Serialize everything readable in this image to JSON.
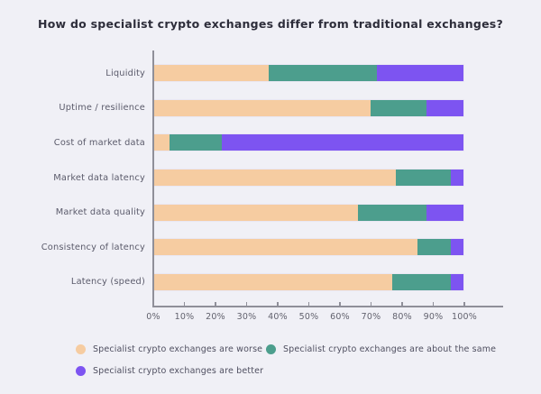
{
  "title": "How do specialist crypto exchanges differ from traditional exchanges?",
  "chart_data": {
    "type": "bar",
    "orientation": "horizontal",
    "stacked": true,
    "unit": "%",
    "title": "How do specialist crypto exchanges differ from traditional exchanges?",
    "categories": [
      "Liquidity",
      "Uptime / resilience",
      "Cost of market data",
      "Market data latency",
      "Market data quality",
      "Consistency of latency",
      "Latency (speed)"
    ],
    "series": [
      {
        "name": "Specialist crypto exchanges are worse",
        "color": "#F6CCA1",
        "values": [
          37,
          70,
          5,
          78,
          66,
          85,
          77
        ]
      },
      {
        "name": "Specialist crypto exchanges are about the same",
        "color": "#4C9E8D",
        "values": [
          35,
          18,
          17,
          18,
          22,
          11,
          19
        ]
      },
      {
        "name": "Specialist crypto exchanges are better",
        "color": "#7D54F1",
        "values": [
          28,
          12,
          78,
          4,
          12,
          4,
          4
        ]
      }
    ],
    "x_ticks": [
      "0%",
      "10%",
      "20%",
      "30%",
      "40%",
      "50%",
      "60%",
      "70%",
      "80%",
      "90%",
      "100%"
    ],
    "xlim": [
      0,
      100
    ],
    "grid": false,
    "legend_position": "bottom"
  },
  "colors": {
    "background": "#F0F0F6",
    "axis": "#8F8F99",
    "title_text": "#2D2D3A",
    "category_label_text": "#5B5B6B",
    "tick_label_text": "#62626E",
    "legend_text": "#4F4F60",
    "bar_border": "#E9E7F3"
  }
}
